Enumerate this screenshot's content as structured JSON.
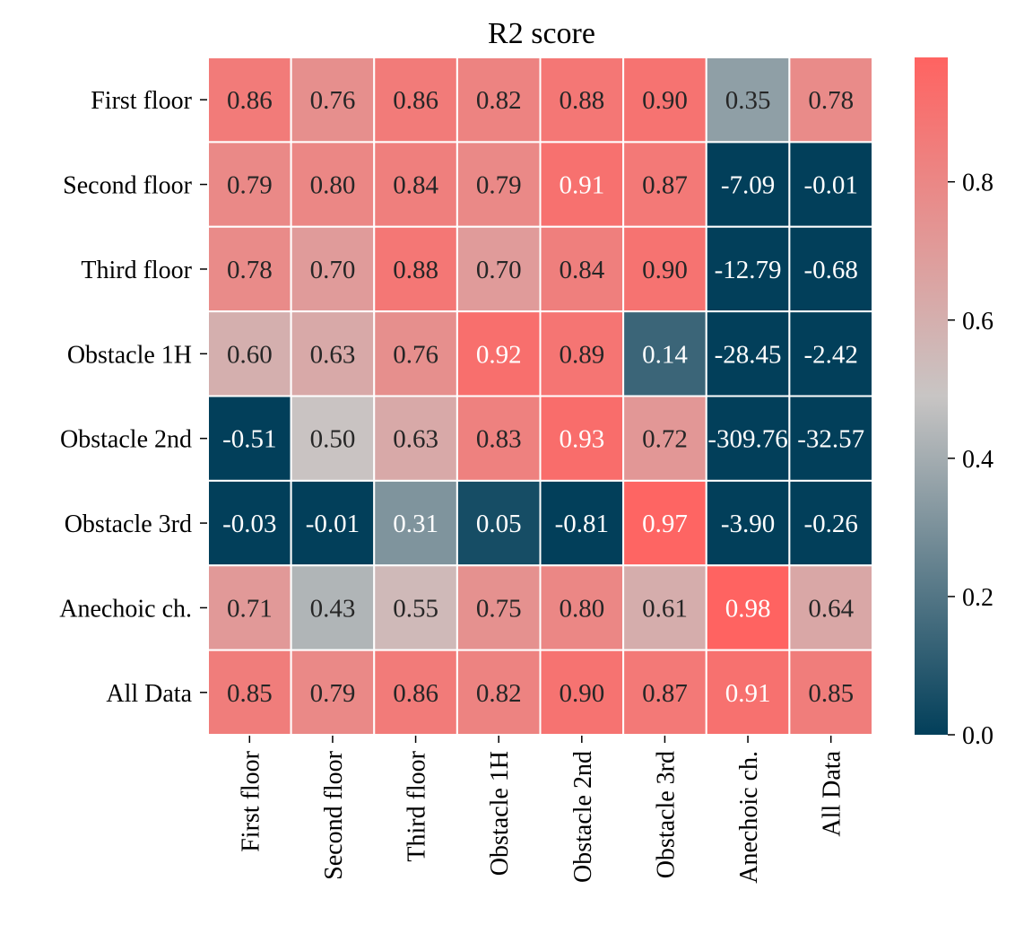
{
  "chart_data": {
    "type": "heatmap",
    "title": "R2 score",
    "rows": [
      "First floor",
      "Second floor",
      "Third floor",
      "Obstacle 1H",
      "Obstacle 2nd",
      "Obstacle 3rd",
      "Anechoic ch.",
      "All Data"
    ],
    "columns": [
      "First floor",
      "Second floor",
      "Third floor",
      "Obstacle 1H",
      "Obstacle 2nd",
      "Obstacle 3rd",
      "Anechoic ch.",
      "All Data"
    ],
    "values": [
      [
        0.86,
        0.76,
        0.86,
        0.82,
        0.88,
        0.9,
        0.35,
        0.78
      ],
      [
        0.79,
        0.8,
        0.84,
        0.79,
        0.91,
        0.87,
        -7.09,
        -0.01
      ],
      [
        0.78,
        0.7,
        0.88,
        0.7,
        0.84,
        0.9,
        -12.79,
        -0.68
      ],
      [
        0.6,
        0.63,
        0.76,
        0.92,
        0.89,
        0.14,
        -28.45,
        -2.42
      ],
      [
        -0.51,
        0.5,
        0.63,
        0.83,
        0.93,
        0.72,
        -309.76,
        -32.57
      ],
      [
        -0.03,
        -0.01,
        0.31,
        0.05,
        -0.81,
        0.97,
        -3.9,
        -0.26
      ],
      [
        0.71,
        0.43,
        0.55,
        0.75,
        0.8,
        0.61,
        0.98,
        0.64
      ],
      [
        0.85,
        0.79,
        0.86,
        0.82,
        0.9,
        0.87,
        0.91,
        0.85
      ]
    ],
    "value_format": "2 decimals",
    "color_range": [
      0.0,
      0.98
    ],
    "colorbar": {
      "ticks": [
        0.0,
        0.2,
        0.4,
        0.6,
        0.8
      ],
      "tick_labels": [
        "0.0",
        "0.2",
        "0.4",
        "0.6",
        "0.8"
      ]
    },
    "colors": {
      "low": "#023f5a",
      "mid": "#c8c5c4",
      "high": "#ff6361",
      "grid": "#ffffff",
      "light_text": "#ffffff",
      "dark_text": "#262626"
    }
  }
}
